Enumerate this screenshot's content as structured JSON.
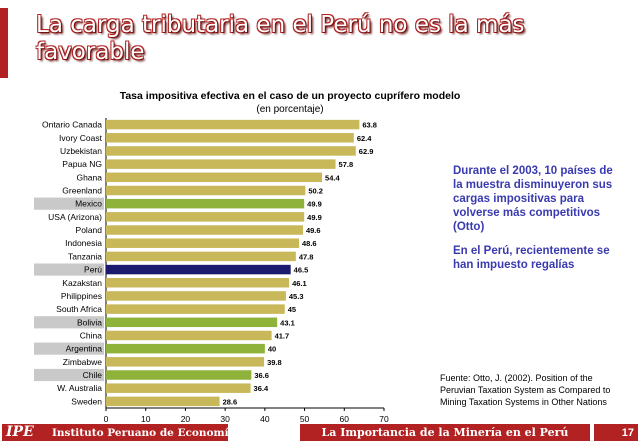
{
  "slide": {
    "title": "La carga tributaria en el Perú no es la más favorable",
    "page_number": "17",
    "footer_org_logo": "IPE",
    "footer_org_name": "Instituto Peruano de Economía",
    "footer_title": "La Importancia de la Minería en el Perú"
  },
  "side_notes": {
    "paragraph1": "Durante el 2003, 10 países de la muestra disminuyeron sus cargas impositivas para volverse más competitivos (Otto)",
    "paragraph2": "En el Perú, recientemente se han impuesto regalías"
  },
  "source_note": "Fuente: Otto, J. (2002). Position of the Peruvian Taxation System as Compared to Mining Taxation Systems in Other Nations",
  "colors": {
    "title_accent": "#b22222",
    "side_text": "#3a3ab0",
    "bar_default": "#c8b85a",
    "bar_highlight_green": "#8fb33a",
    "bar_highlight_peru": "#1a1a6e",
    "label_highlight_bg": "#c9c9c9"
  },
  "chart_data": {
    "type": "bar",
    "orientation": "horizontal",
    "title": "Tasa impositiva efectiva en el caso de un proyecto cuprífero modelo",
    "subtitle": "(en porcentaje)",
    "xlim": [
      0,
      70
    ],
    "xticks": [
      0,
      10,
      20,
      30,
      40,
      50,
      60,
      70
    ],
    "categories": [
      "Ontario Canada",
      "Ivory Coast",
      "Uzbekistan",
      "Papua NG",
      "Ghana",
      "Greenland",
      "Mexico",
      "USA (Arizona)",
      "Poland",
      "Indonesia",
      "Tanzania",
      "Perú",
      "Kazakstan",
      "Philippines",
      "South Africa",
      "Bolivia",
      "China",
      "Argentina",
      "Zimbabwe",
      "Chile",
      "W. Australia",
      "Sweden"
    ],
    "values": [
      63.8,
      62.4,
      62.9,
      57.8,
      54.4,
      50.2,
      49.9,
      49.9,
      49.6,
      48.6,
      47.8,
      46.5,
      46.1,
      45.3,
      45,
      43.1,
      41.7,
      40,
      39.8,
      36.6,
      36.4,
      28.6
    ],
    "value_labels": [
      "63.8",
      "62.4",
      "62.9",
      "57.8",
      "54.4",
      "50.2",
      "49.9",
      "49.9",
      "49.6",
      "48.6",
      "47.8",
      "46.5",
      "46.1",
      "45.3",
      "45",
      "43.1",
      "41.7",
      "40",
      "39.8",
      "36.6",
      "36.4",
      "28.6"
    ],
    "highlight": [
      "default",
      "default",
      "default",
      "default",
      "default",
      "default",
      "green",
      "default",
      "default",
      "default",
      "default",
      "peru",
      "default",
      "default",
      "default",
      "green",
      "default",
      "green",
      "default",
      "green",
      "default",
      "default"
    ]
  }
}
